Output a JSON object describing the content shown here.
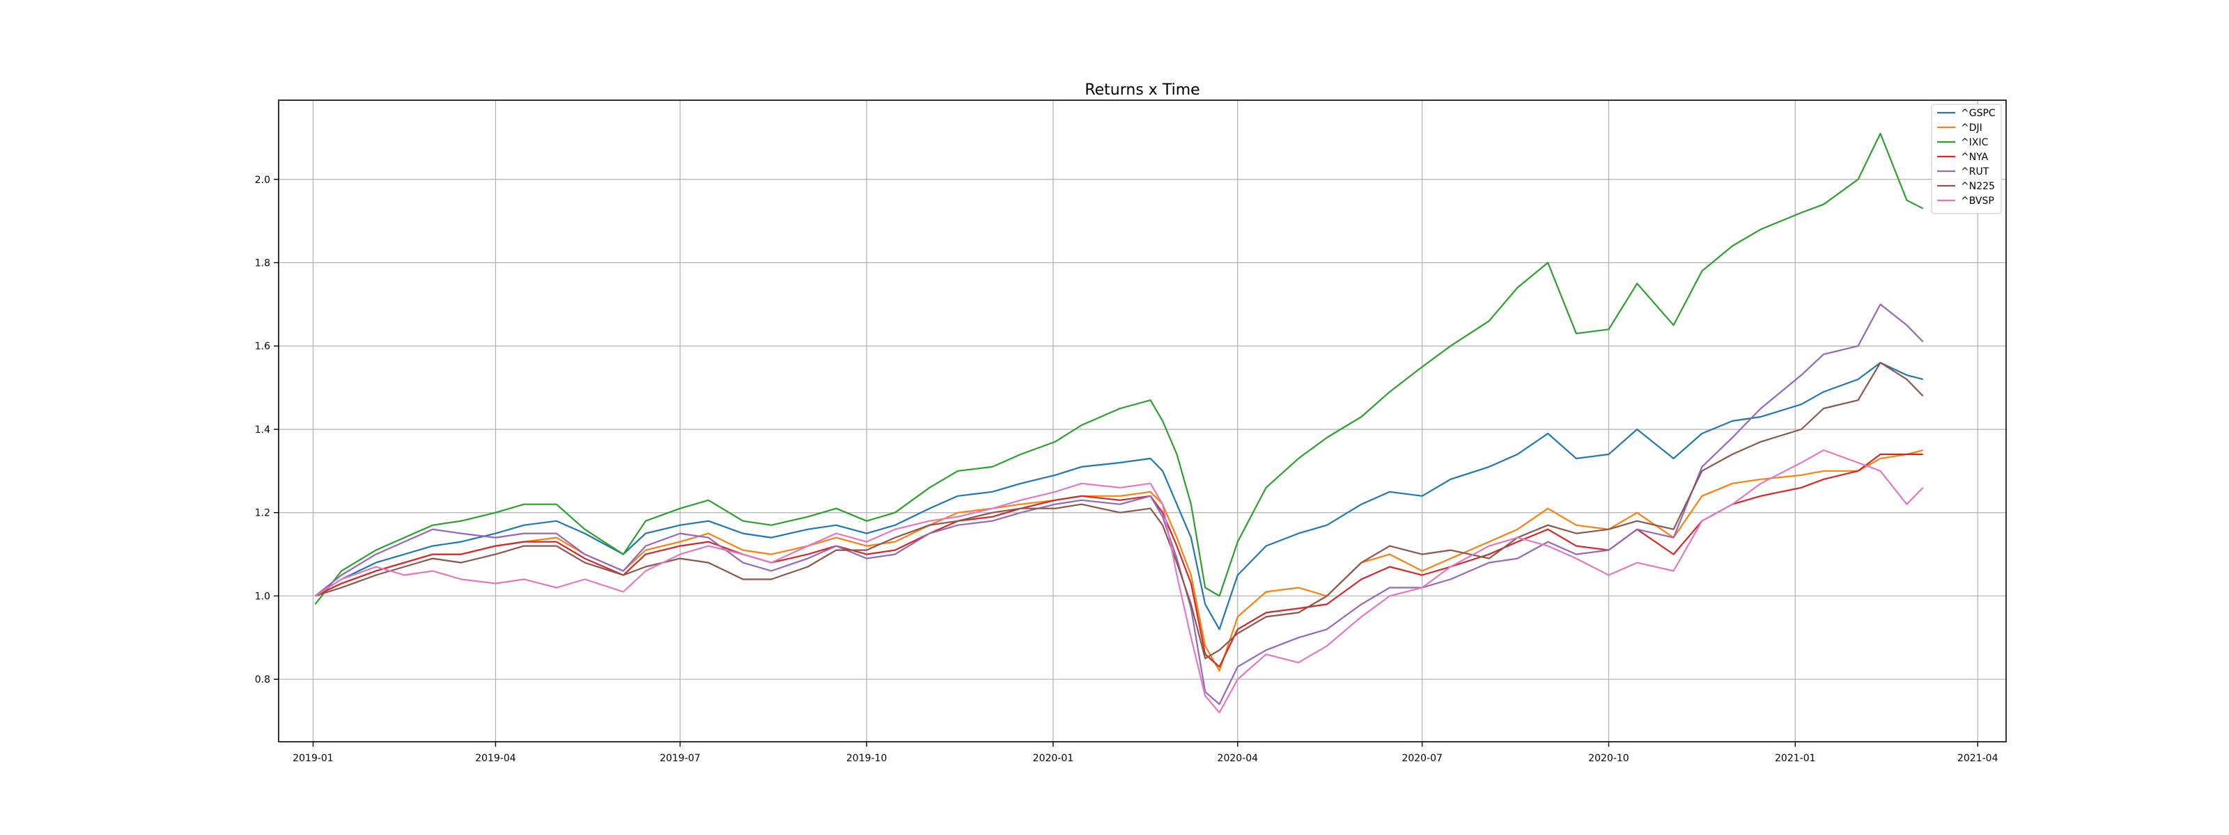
{
  "chart_data": {
    "type": "line",
    "title": "Returns x Time",
    "xlabel": "",
    "ylabel": "",
    "x_range": [
      "2018-12-15",
      "2021-04-15"
    ],
    "ylim": [
      0.65,
      2.19
    ],
    "xticks": [
      {
        "date": "2019-01-01",
        "label": "2019-01"
      },
      {
        "date": "2019-04-01",
        "label": "2019-04"
      },
      {
        "date": "2019-07-01",
        "label": "2019-07"
      },
      {
        "date": "2019-10-01",
        "label": "2019-10"
      },
      {
        "date": "2020-01-01",
        "label": "2020-01"
      },
      {
        "date": "2020-04-01",
        "label": "2020-04"
      },
      {
        "date": "2020-07-01",
        "label": "2020-07"
      },
      {
        "date": "2020-10-01",
        "label": "2020-10"
      },
      {
        "date": "2021-01-01",
        "label": "2021-01"
      },
      {
        "date": "2021-04-01",
        "label": "2021-04"
      }
    ],
    "yticks": [
      {
        "value": 0.8,
        "label": "0.8"
      },
      {
        "value": 1.0,
        "label": "1.0"
      },
      {
        "value": 1.2,
        "label": "1.2"
      },
      {
        "value": 1.4,
        "label": "1.4"
      },
      {
        "value": 1.6,
        "label": "1.6"
      },
      {
        "value": 1.8,
        "label": "1.8"
      },
      {
        "value": 2.0,
        "label": "2.0"
      }
    ],
    "grid": true,
    "legend_position": "top-right",
    "x": [
      "2019-01-02",
      "2019-01-15",
      "2019-02-01",
      "2019-02-15",
      "2019-03-01",
      "2019-03-15",
      "2019-04-01",
      "2019-04-15",
      "2019-05-01",
      "2019-05-15",
      "2019-06-03",
      "2019-06-14",
      "2019-07-01",
      "2019-07-15",
      "2019-08-01",
      "2019-08-15",
      "2019-09-02",
      "2019-09-16",
      "2019-10-01",
      "2019-10-15",
      "2019-11-01",
      "2019-11-15",
      "2019-12-02",
      "2019-12-16",
      "2020-01-02",
      "2020-01-15",
      "2020-02-03",
      "2020-02-18",
      "2020-02-24",
      "2020-03-02",
      "2020-03-09",
      "2020-03-16",
      "2020-03-23",
      "2020-04-01",
      "2020-04-15",
      "2020-05-01",
      "2020-05-15",
      "2020-06-01",
      "2020-06-15",
      "2020-07-01",
      "2020-07-15",
      "2020-08-03",
      "2020-08-17",
      "2020-09-01",
      "2020-09-15",
      "2020-10-01",
      "2020-10-15",
      "2020-11-02",
      "2020-11-16",
      "2020-12-01",
      "2020-12-15",
      "2021-01-04",
      "2021-01-15",
      "2021-02-01",
      "2021-02-12",
      "2021-02-25",
      "2021-03-05"
    ],
    "series": [
      {
        "name": "^GSPC",
        "color": "#1f77b4",
        "values": [
          1.0,
          1.04,
          1.08,
          1.1,
          1.12,
          1.13,
          1.15,
          1.17,
          1.18,
          1.15,
          1.1,
          1.15,
          1.17,
          1.18,
          1.15,
          1.14,
          1.16,
          1.17,
          1.15,
          1.17,
          1.21,
          1.24,
          1.25,
          1.27,
          1.29,
          1.31,
          1.32,
          1.33,
          1.3,
          1.22,
          1.14,
          0.98,
          0.92,
          1.05,
          1.12,
          1.15,
          1.17,
          1.22,
          1.25,
          1.24,
          1.28,
          1.31,
          1.34,
          1.39,
          1.33,
          1.34,
          1.4,
          1.33,
          1.39,
          1.42,
          1.43,
          1.46,
          1.49,
          1.52,
          1.56,
          1.53,
          1.52
        ]
      },
      {
        "name": "^DJI",
        "color": "#ff7f0e",
        "values": [
          1.0,
          1.03,
          1.06,
          1.08,
          1.1,
          1.1,
          1.12,
          1.13,
          1.14,
          1.1,
          1.06,
          1.11,
          1.13,
          1.15,
          1.11,
          1.1,
          1.12,
          1.14,
          1.12,
          1.13,
          1.17,
          1.2,
          1.21,
          1.22,
          1.23,
          1.24,
          1.24,
          1.25,
          1.22,
          1.14,
          1.05,
          0.88,
          0.82,
          0.95,
          1.01,
          1.02,
          1.0,
          1.08,
          1.1,
          1.06,
          1.09,
          1.13,
          1.16,
          1.21,
          1.17,
          1.16,
          1.2,
          1.14,
          1.24,
          1.27,
          1.28,
          1.29,
          1.3,
          1.3,
          1.33,
          1.34,
          1.35
        ]
      },
      {
        "name": "^IXIC",
        "color": "#2ca02c",
        "values": [
          0.98,
          1.06,
          1.11,
          1.14,
          1.17,
          1.18,
          1.2,
          1.22,
          1.22,
          1.16,
          1.1,
          1.18,
          1.21,
          1.23,
          1.18,
          1.17,
          1.19,
          1.21,
          1.18,
          1.2,
          1.26,
          1.3,
          1.31,
          1.34,
          1.37,
          1.41,
          1.45,
          1.47,
          1.42,
          1.34,
          1.22,
          1.02,
          1.0,
          1.13,
          1.26,
          1.33,
          1.38,
          1.43,
          1.49,
          1.55,
          1.6,
          1.66,
          1.74,
          1.8,
          1.63,
          1.64,
          1.75,
          1.65,
          1.78,
          1.84,
          1.88,
          1.92,
          1.94,
          2.0,
          2.11,
          1.95,
          1.93
        ]
      },
      {
        "name": "^NYA",
        "color": "#d62728",
        "values": [
          1.0,
          1.03,
          1.06,
          1.08,
          1.1,
          1.1,
          1.12,
          1.13,
          1.13,
          1.09,
          1.05,
          1.1,
          1.12,
          1.13,
          1.1,
          1.08,
          1.1,
          1.12,
          1.1,
          1.11,
          1.15,
          1.18,
          1.19,
          1.21,
          1.23,
          1.24,
          1.23,
          1.24,
          1.2,
          1.12,
          1.03,
          0.86,
          0.83,
          0.92,
          0.96,
          0.97,
          0.98,
          1.04,
          1.07,
          1.05,
          1.07,
          1.1,
          1.13,
          1.16,
          1.12,
          1.11,
          1.16,
          1.1,
          1.18,
          1.22,
          1.24,
          1.26,
          1.28,
          1.3,
          1.34,
          1.34,
          1.34
        ]
      },
      {
        "name": "^RUT",
        "color": "#9467bd",
        "values": [
          1.0,
          1.05,
          1.1,
          1.13,
          1.16,
          1.15,
          1.14,
          1.15,
          1.15,
          1.1,
          1.06,
          1.12,
          1.15,
          1.14,
          1.08,
          1.06,
          1.09,
          1.12,
          1.09,
          1.1,
          1.15,
          1.17,
          1.18,
          1.2,
          1.22,
          1.23,
          1.22,
          1.24,
          1.19,
          1.09,
          0.97,
          0.77,
          0.74,
          0.83,
          0.87,
          0.9,
          0.92,
          0.98,
          1.02,
          1.02,
          1.04,
          1.08,
          1.09,
          1.13,
          1.1,
          1.11,
          1.16,
          1.14,
          1.31,
          1.38,
          1.45,
          1.53,
          1.58,
          1.6,
          1.7,
          1.65,
          1.61
        ]
      },
      {
        "name": "^N225",
        "color": "#8c564b",
        "values": [
          1.0,
          1.02,
          1.05,
          1.07,
          1.09,
          1.08,
          1.1,
          1.12,
          1.12,
          1.08,
          1.05,
          1.07,
          1.09,
          1.08,
          1.04,
          1.04,
          1.07,
          1.11,
          1.11,
          1.14,
          1.17,
          1.18,
          1.2,
          1.21,
          1.21,
          1.22,
          1.2,
          1.21,
          1.17,
          1.08,
          0.98,
          0.85,
          0.87,
          0.91,
          0.95,
          0.96,
          1.0,
          1.08,
          1.12,
          1.1,
          1.11,
          1.09,
          1.14,
          1.17,
          1.15,
          1.16,
          1.18,
          1.16,
          1.3,
          1.34,
          1.37,
          1.4,
          1.45,
          1.47,
          1.56,
          1.52,
          1.48
        ]
      },
      {
        "name": "^BVSP",
        "color": "#e377c2",
        "values": [
          1.0,
          1.04,
          1.07,
          1.05,
          1.06,
          1.04,
          1.03,
          1.04,
          1.02,
          1.04,
          1.01,
          1.06,
          1.1,
          1.12,
          1.1,
          1.08,
          1.12,
          1.15,
          1.13,
          1.16,
          1.18,
          1.19,
          1.21,
          1.23,
          1.25,
          1.27,
          1.26,
          1.27,
          1.22,
          1.05,
          0.9,
          0.76,
          0.72,
          0.8,
          0.86,
          0.84,
          0.88,
          0.95,
          1.0,
          1.02,
          1.07,
          1.12,
          1.14,
          1.12,
          1.09,
          1.05,
          1.08,
          1.06,
          1.18,
          1.22,
          1.27,
          1.32,
          1.35,
          1.32,
          1.3,
          1.22,
          1.26
        ]
      }
    ]
  }
}
